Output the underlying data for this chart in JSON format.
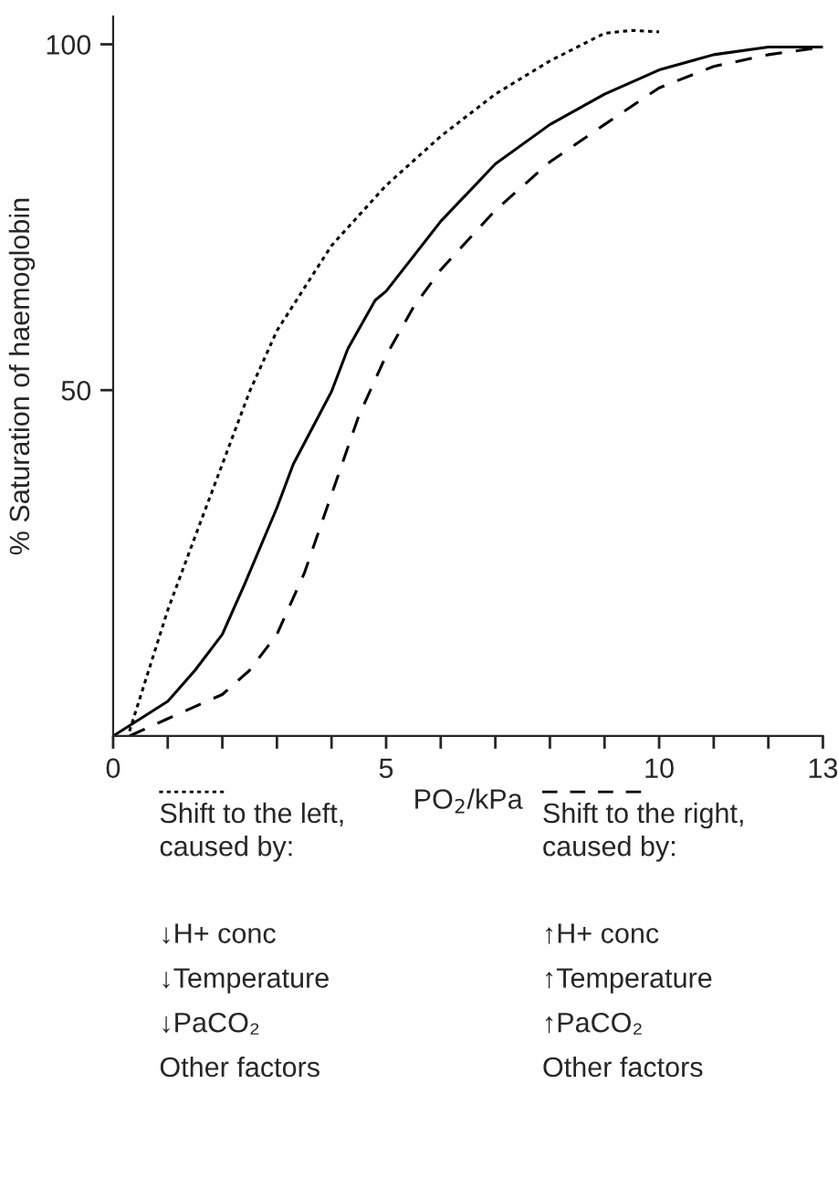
{
  "chart_data": {
    "type": "line",
    "xlabel": "PO$_{2}$/kPa",
    "ylabel": "% Saturation of haemoglobin",
    "xlim": [
      0,
      13
    ],
    "ylim": [
      0,
      104
    ],
    "xticks": [
      0,
      {
        "value": 1,
        "label": null
      },
      {
        "value": 2,
        "label": null
      },
      {
        "value": 3,
        "label": null
      },
      {
        "value": 4,
        "label": null
      },
      5,
      {
        "value": 6,
        "label": null
      },
      {
        "value": 7,
        "label": null
      },
      {
        "value": 8,
        "label": null
      },
      {
        "value": 9,
        "label": null
      },
      10,
      {
        "value": 11,
        "label": null
      },
      {
        "value": 12,
        "label": null
      },
      13
    ],
    "yticks": [
      50,
      100
    ],
    "grid": false,
    "legend": "bottom",
    "marker": "none",
    "series": [
      {
        "color": "#000000",
        "line_style": "solid",
        "x": [
          0,
          1,
          1.5,
          2,
          2.4,
          3,
          3.3,
          4,
          4.3,
          4.8,
          5,
          6,
          7,
          8,
          9,
          10,
          11,
          12,
          13
        ],
        "values": [
          0,
          5,
          9.5,
          14.7,
          21.8,
          33,
          39.3,
          49.8,
          56,
          63,
          64.3,
          74.4,
          82.7,
          88.4,
          92.8,
          96.3,
          98.5,
          99.6,
          99.6
        ]
      },
      {
        "name": "Shift to the left,\ncaused by:",
        "color": "#000000",
        "line_style": "dotted",
        "x": [
          0.3,
          1,
          1.5,
          2,
          2.5,
          3,
          4,
          5,
          6,
          7,
          8,
          9,
          9.5,
          10
        ],
        "values": [
          0.7,
          18.2,
          28.8,
          39.3,
          49.8,
          58.6,
          70.9,
          79.6,
          86.7,
          92.8,
          97.6,
          101.6,
          102,
          101.8
        ]
      },
      {
        "name": "Shift to the right,\ncaused by:",
        "color": "#000000",
        "line_style": "dashed",
        "x": [
          0.3,
          1,
          2,
          2.5,
          3,
          3.5,
          4,
          4.5,
          5,
          5.5,
          6,
          7,
          8,
          9,
          10,
          11,
          12,
          13
        ],
        "values": [
          0,
          2.5,
          6,
          9.5,
          14.7,
          23.5,
          34.9,
          46.3,
          55,
          62,
          67.4,
          76,
          83,
          88.4,
          93.7,
          96.8,
          98.5,
          99.6
        ]
      }
    ],
    "annotations": [
      "↓H+ conc",
      "↓Temperature",
      "↓PaCO₂",
      "Other factors",
      "↑H+ conc",
      "↑Temperature",
      "↑PaCO₂",
      "Other factors"
    ]
  }
}
